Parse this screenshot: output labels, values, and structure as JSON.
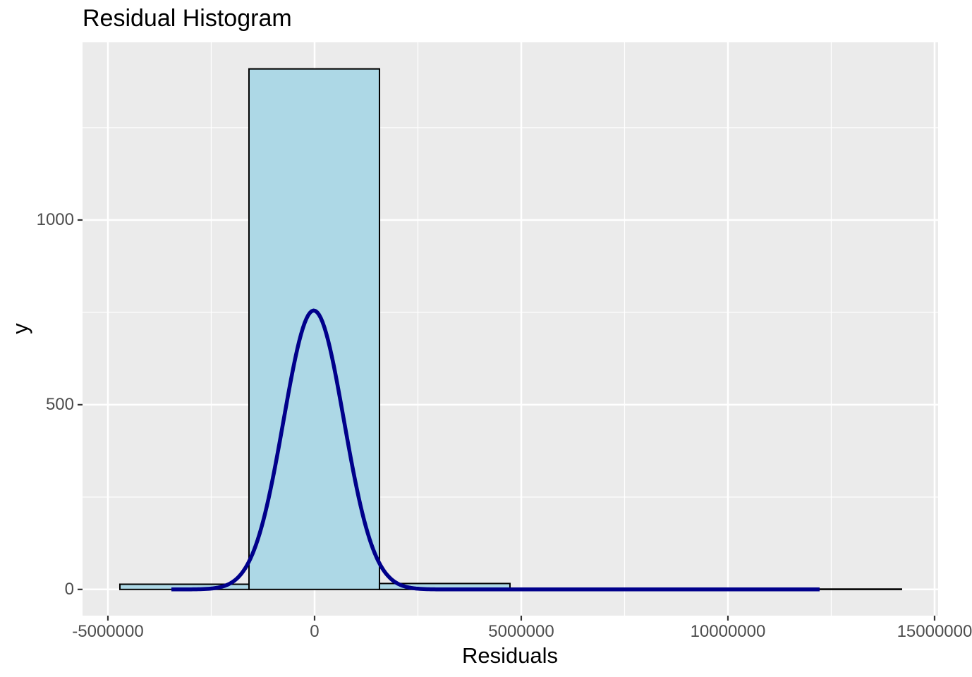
{
  "chart_data": {
    "type": "bar",
    "subtype": "histogram_with_density_curve",
    "title": "Residual Histogram",
    "xlabel": "Residuals",
    "ylabel": "y",
    "legend": "none",
    "grid": "on",
    "xlim": [
      -5614000,
      15086000
    ],
    "ylim": [
      -71,
      1481
    ],
    "x_ticks": {
      "values": [
        -5000000,
        0,
        5000000,
        10000000,
        15000000
      ],
      "labels": [
        "-5000000",
        "0",
        "5000000",
        "10000000",
        "15000000"
      ]
    },
    "y_ticks": {
      "values": [
        0,
        500,
        1000
      ],
      "labels": [
        "0",
        "500",
        "1000"
      ]
    },
    "x_minor_gridlines": [
      -2500000,
      2500000,
      7500000,
      12500000
    ],
    "y_minor_gridlines": [
      250,
      750,
      1250
    ],
    "histogram": {
      "bin_width": 3157000,
      "bins": [
        {
          "x0": -4710000,
          "x1": -1587000,
          "count": 14
        },
        {
          "x0": -1587000,
          "x1": 1570000,
          "count": 1409
        },
        {
          "x0": 1570000,
          "x1": 4727000,
          "count": 16
        },
        {
          "x0": 4727000,
          "x1": 7884000,
          "count": 1
        },
        {
          "x0": 7884000,
          "x1": 11041000,
          "count": 1
        },
        {
          "x0": 11041000,
          "x1": 14198000,
          "count": 1
        }
      ]
    },
    "density_curve": {
      "shape": "gaussian",
      "mean": -20000,
      "sd": 730000,
      "peak": 755,
      "x_start": -3464000,
      "x_end": 12218000
    },
    "colors": {
      "figure_bg": "#FFFFFF",
      "panel_bg": "#EBEBEB",
      "gridline": "#FFFFFF",
      "bar_fill": "#ADD8E6",
      "bar_stroke": "#000000",
      "density_line": "#00008B",
      "tick_text": "#4D4D4D",
      "tick_mark": "#333333",
      "title_text": "#000000"
    }
  }
}
